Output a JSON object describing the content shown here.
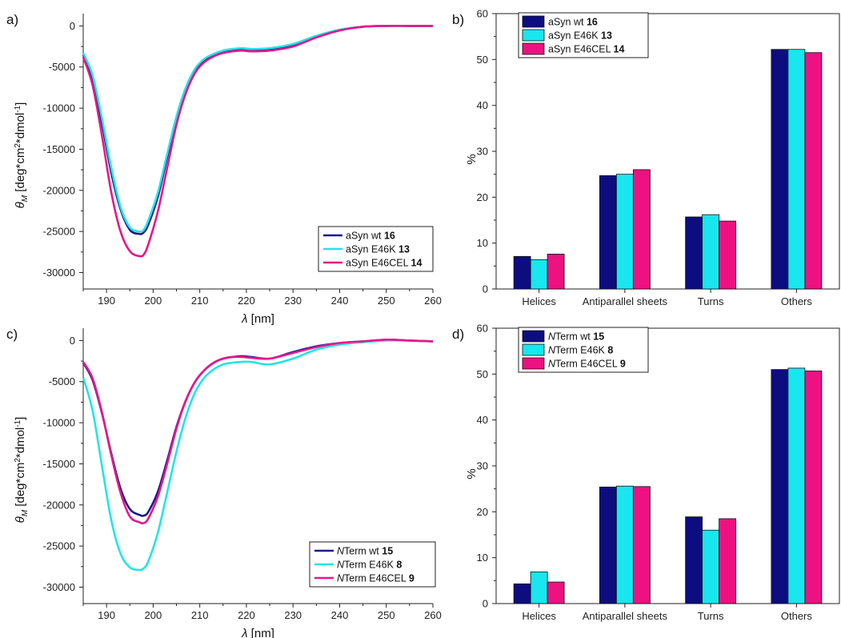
{
  "chart_data": [
    {
      "panel": "a)",
      "type": "line",
      "xlabel": "λ [nm]",
      "ylabel": "θM [deg*cm2*dmol-1]",
      "xlim": [
        185,
        260
      ],
      "ylim": [
        -32000,
        1500
      ],
      "xticks": [
        190,
        200,
        210,
        220,
        230,
        240,
        250,
        260
      ],
      "yticks": [
        0,
        -5000,
        -10000,
        -15000,
        -20000,
        -25000,
        -30000
      ],
      "legend_position": "bottom-right",
      "grid": false,
      "series": [
        {
          "name": "aSyn wt",
          "name_bold": "16",
          "color": "#1a1a8c",
          "x": [
            185,
            187,
            189,
            191,
            193,
            195,
            197,
            198,
            199,
            201,
            203,
            205,
            207,
            209,
            211,
            213,
            215,
            217,
            219,
            221,
            225,
            230,
            235,
            240,
            245,
            250,
            255,
            260
          ],
          "y": [
            -3500,
            -6500,
            -11800,
            -17800,
            -22300,
            -24800,
            -25300,
            -25100,
            -24100,
            -20800,
            -16000,
            -11200,
            -7600,
            -5400,
            -4200,
            -3600,
            -3200,
            -3000,
            -2900,
            -3000,
            -2900,
            -2400,
            -1300,
            -500,
            -100,
            0,
            0,
            0
          ]
        },
        {
          "name": "aSyn E46K",
          "name_bold": "13",
          "color": "#22e5e5",
          "x": [
            185,
            187,
            189,
            191,
            193,
            195,
            197,
            198,
            199,
            201,
            203,
            205,
            207,
            209,
            211,
            213,
            215,
            217,
            219,
            221,
            225,
            230,
            235,
            240,
            245,
            250,
            255,
            260
          ],
          "y": [
            -3300,
            -6000,
            -11200,
            -17200,
            -22000,
            -24500,
            -25000,
            -24800,
            -23600,
            -20300,
            -15600,
            -11000,
            -7500,
            -5200,
            -4000,
            -3400,
            -3000,
            -2800,
            -2700,
            -2800,
            -2700,
            -2200,
            -1200,
            -450,
            -100,
            0,
            0,
            0
          ]
        },
        {
          "name": "aSyn E46CEL",
          "name_bold": "14",
          "color": "#e8168a",
          "x": [
            185,
            187,
            189,
            191,
            193,
            195,
            197,
            198,
            199,
            201,
            203,
            205,
            207,
            209,
            211,
            213,
            215,
            217,
            219,
            221,
            225,
            230,
            235,
            240,
            245,
            250,
            255,
            260
          ],
          "y": [
            -3800,
            -7200,
            -13300,
            -20200,
            -25000,
            -27400,
            -28000,
            -27800,
            -26500,
            -22600,
            -17300,
            -12000,
            -8200,
            -5700,
            -4400,
            -3700,
            -3300,
            -3100,
            -3000,
            -3100,
            -3000,
            -2500,
            -1400,
            -550,
            -100,
            0,
            0,
            0
          ]
        }
      ]
    },
    {
      "panel": "b)",
      "type": "bar",
      "ylabel": "%",
      "ylim": [
        0,
        60
      ],
      "yticks": [
        0,
        10,
        20,
        30,
        40,
        50,
        60
      ],
      "categories": [
        "Helices",
        "Antiparallel sheets",
        "Turns",
        "Others"
      ],
      "legend_position": "top-left",
      "grid": false,
      "series": [
        {
          "name": "aSyn wt",
          "name_bold": "16",
          "color": "#0d0d80",
          "values": [
            7.1,
            24.7,
            15.7,
            52.2
          ]
        },
        {
          "name": "aSyn E46K",
          "name_bold": "13",
          "color": "#19e6ee",
          "values": [
            6.4,
            25.0,
            16.2,
            52.2
          ]
        },
        {
          "name": "aSyn E46CEL",
          "name_bold": "14",
          "color": "#ee1181",
          "values": [
            7.6,
            26.0,
            14.8,
            51.5
          ]
        }
      ]
    },
    {
      "panel": "c)",
      "type": "line",
      "xlabel": "λ [nm]",
      "ylabel": "θM [deg*cm2*dmol-1]",
      "xlim": [
        185,
        260
      ],
      "ylim": [
        -32000,
        1500
      ],
      "xticks": [
        190,
        200,
        210,
        220,
        230,
        240,
        250,
        260
      ],
      "yticks": [
        0,
        -5000,
        -10000,
        -15000,
        -20000,
        -25000,
        -30000
      ],
      "legend_position": "bottom-right",
      "grid": false,
      "series": [
        {
          "name_italic": "N",
          "name": "Term wt",
          "name_bold": "15",
          "color": "#1a1a8c",
          "x": [
            185,
            187,
            189,
            191,
            193,
            195,
            197,
            198,
            199,
            201,
            203,
            205,
            207,
            209,
            211,
            213,
            215,
            217,
            219,
            221,
            225,
            230,
            235,
            240,
            245,
            250,
            255,
            260
          ],
          "y": [
            -2700,
            -4800,
            -8800,
            -13700,
            -18000,
            -20500,
            -21200,
            -21300,
            -20800,
            -18400,
            -14600,
            -10500,
            -7300,
            -5000,
            -3600,
            -2700,
            -2200,
            -2000,
            -1900,
            -2000,
            -2200,
            -1400,
            -700,
            -300,
            -100,
            100,
            0,
            -100
          ]
        },
        {
          "name_italic": "N",
          "name": "Term E46K",
          "name_bold": "8",
          "color": "#22e5e5",
          "x": [
            185,
            187,
            189,
            191,
            193,
            195,
            197,
            198,
            199,
            201,
            203,
            205,
            207,
            209,
            211,
            213,
            215,
            217,
            219,
            221,
            225,
            230,
            235,
            240,
            245,
            250,
            255,
            260
          ],
          "y": [
            -4500,
            -8500,
            -15200,
            -21800,
            -25900,
            -27600,
            -27900,
            -27700,
            -26800,
            -23400,
            -18500,
            -13500,
            -9300,
            -6300,
            -4500,
            -3500,
            -2900,
            -2700,
            -2600,
            -2600,
            -2900,
            -2200,
            -1100,
            -500,
            -200,
            0,
            0,
            -100
          ]
        },
        {
          "name_italic": "N",
          "name": "Term E46CEL",
          "name_bold": "9",
          "color": "#e8168a",
          "x": [
            185,
            187,
            189,
            191,
            193,
            195,
            197,
            198,
            199,
            201,
            203,
            205,
            207,
            209,
            211,
            213,
            215,
            217,
            219,
            221,
            225,
            230,
            235,
            240,
            245,
            250,
            255,
            260
          ],
          "y": [
            -2600,
            -4600,
            -8700,
            -13900,
            -18500,
            -21400,
            -22100,
            -22200,
            -21600,
            -19000,
            -15000,
            -10700,
            -7300,
            -5000,
            -3600,
            -2700,
            -2200,
            -2000,
            -2000,
            -2100,
            -2200,
            -1500,
            -800,
            -300,
            -100,
            100,
            0,
            -100
          ]
        }
      ]
    },
    {
      "panel": "d)",
      "type": "bar",
      "ylabel": "%",
      "ylim": [
        0,
        60
      ],
      "yticks": [
        0,
        10,
        20,
        30,
        40,
        50,
        60
      ],
      "categories": [
        "Helices",
        "Antiparallel sheets",
        "Turns",
        "Others"
      ],
      "legend_position": "top-left",
      "grid": false,
      "series": [
        {
          "name_italic": "N",
          "name": "Term wt",
          "name_bold": "15",
          "color": "#0d0d80",
          "values": [
            4.3,
            25.4,
            18.9,
            51.0
          ]
        },
        {
          "name_italic": "N",
          "name": "Term E46K",
          "name_bold": "8",
          "color": "#19e6ee",
          "values": [
            6.9,
            25.6,
            16.0,
            51.3
          ]
        },
        {
          "name_italic": "N",
          "name": "Term E46CEL",
          "name_bold": "9",
          "color": "#ee1181",
          "values": [
            4.7,
            25.5,
            18.5,
            50.7
          ]
        }
      ]
    }
  ]
}
